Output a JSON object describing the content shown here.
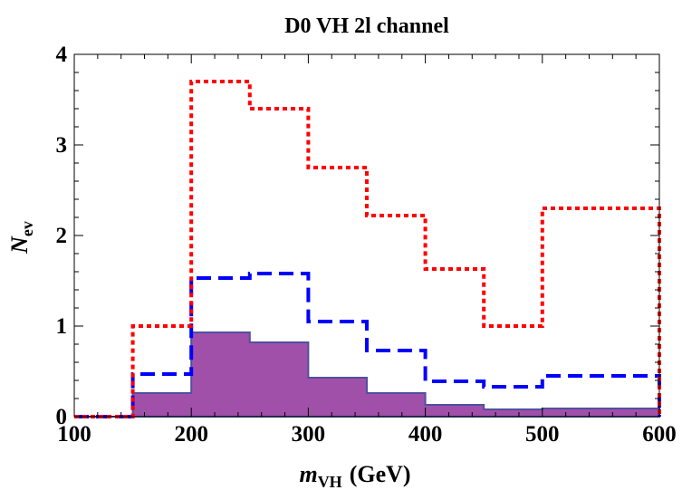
{
  "chart_data": {
    "type": "histogram",
    "title": "D0 VH 2l channel",
    "xlabel": {
      "main": "m",
      "sub": "VH",
      "unit": "(GeV)"
    },
    "ylabel": {
      "main": "N",
      "sub": "ev"
    },
    "xlim": [
      100,
      600
    ],
    "ylim": [
      0,
      4
    ],
    "xticks": [
      100,
      200,
      300,
      400,
      500,
      600
    ],
    "yticks": [
      0,
      1,
      2,
      3,
      4
    ],
    "bin_edges": [
      100,
      150,
      200,
      250,
      300,
      350,
      400,
      450,
      500,
      600
    ],
    "series": [
      {
        "style": "dotted",
        "color": "#ff0000",
        "values": [
          0.0,
          1.0,
          3.7,
          3.4,
          2.75,
          2.22,
          1.63,
          1.0,
          2.3
        ]
      },
      {
        "style": "dashed",
        "color": "#0000ff",
        "values": [
          0.0,
          0.47,
          1.53,
          1.58,
          1.05,
          0.73,
          0.39,
          0.33,
          0.45
        ]
      },
      {
        "style": "filled",
        "color": "#a050a8",
        "edge_color": "#5050a0",
        "values": [
          0.0,
          0.26,
          0.93,
          0.82,
          0.43,
          0.26,
          0.13,
          0.08,
          0.09
        ]
      }
    ],
    "grid": false,
    "legend": "none"
  }
}
